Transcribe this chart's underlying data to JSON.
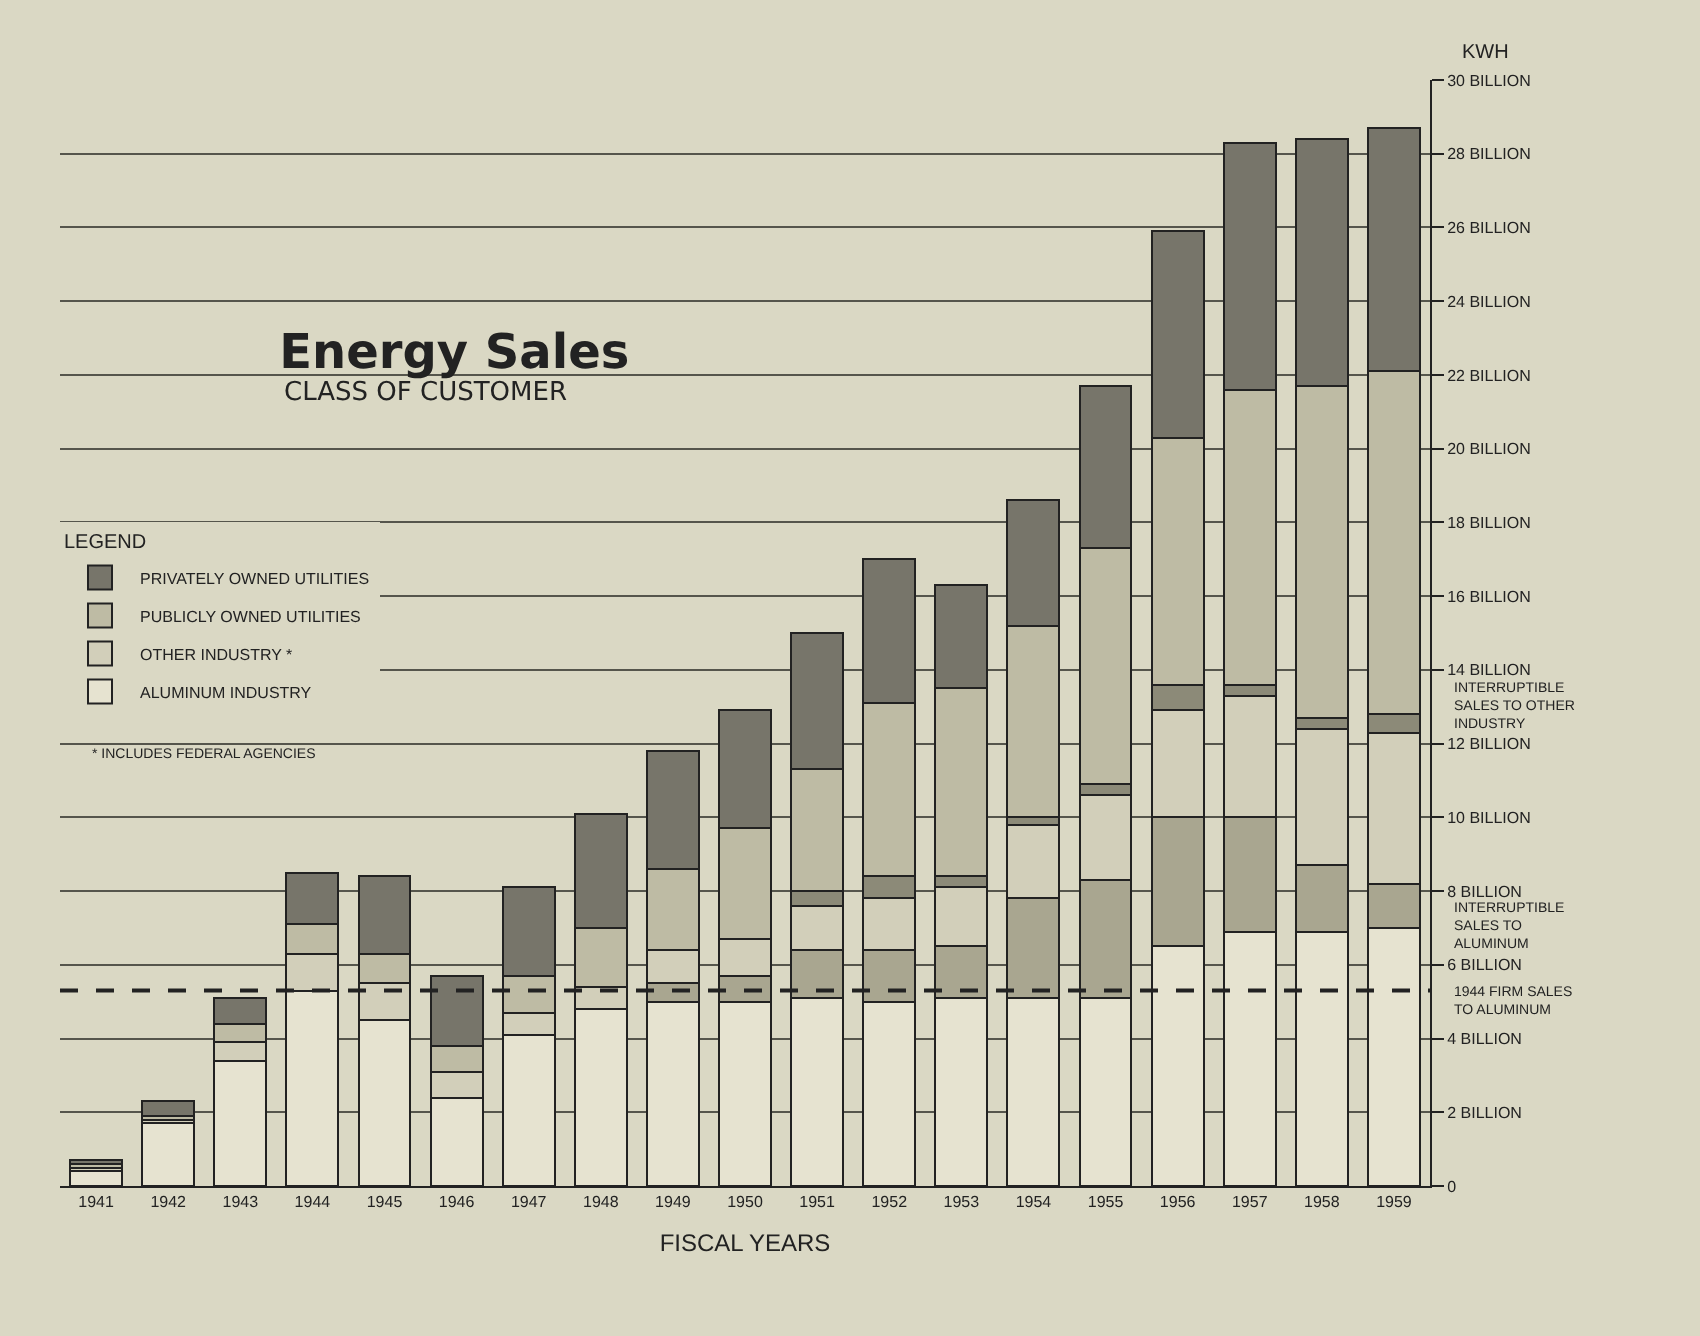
{
  "chart_data": {
    "type": "bar",
    "stacked": true,
    "title": "Energy Sales",
    "subtitle": "CLASS OF CUSTOMER",
    "xlabel": "FISCAL YEARS",
    "ylabel": "KWH",
    "legend_title": "LEGEND",
    "legend": "left",
    "categories": [
      "1941",
      "1942",
      "1943",
      "1944",
      "1945",
      "1946",
      "1947",
      "1948",
      "1949",
      "1950",
      "1951",
      "1952",
      "1953",
      "1954",
      "1955",
      "1956",
      "1957",
      "1958",
      "1959"
    ],
    "series": [
      {
        "name": "ALUMINUM INDUSTRY",
        "color": "#e6e3d0",
        "values": [
          0.4,
          1.7,
          3.4,
          5.3,
          4.5,
          2.4,
          4.1,
          4.8,
          5.0,
          5.0,
          5.1,
          5.0,
          5.1,
          5.1,
          5.1,
          6.5,
          6.9,
          6.9,
          7.0
        ]
      },
      {
        "color": "#a9a690",
        "values": [
          null,
          null,
          null,
          null,
          null,
          null,
          null,
          null,
          0.5,
          0.7,
          1.3,
          1.4,
          1.4,
          2.7,
          3.2,
          3.5,
          3.1,
          1.8,
          1.2
        ]
      },
      {
        "name": "OTHER INDUSTRY *",
        "color": "#d2cfba",
        "values": [
          0.1,
          0.1,
          0.5,
          1.0,
          1.0,
          0.7,
          0.6,
          0.6,
          0.9,
          1.0,
          1.2,
          1.4,
          1.6,
          2.0,
          2.3,
          2.9,
          3.3,
          3.7,
          4.1
        ]
      },
      {
        "color": "#8c8a78",
        "values": [
          null,
          null,
          null,
          null,
          null,
          null,
          null,
          null,
          null,
          null,
          0.4,
          0.6,
          0.3,
          0.2,
          0.3,
          0.7,
          0.3,
          0.3,
          0.5
        ]
      },
      {
        "name": "PUBLICLY OWNED UTILITIES",
        "color": "#bebba4",
        "values": [
          0.1,
          0.1,
          0.5,
          0.8,
          0.8,
          0.7,
          1.0,
          1.6,
          2.2,
          3.0,
          3.3,
          4.7,
          5.1,
          5.2,
          6.4,
          6.7,
          8.0,
          9.0,
          9.3
        ]
      },
      {
        "name": "PRIVATELY OWNED UTILITIES",
        "color": "#77756a",
        "values": [
          0.1,
          0.4,
          0.7,
          1.4,
          2.1,
          1.9,
          2.4,
          3.1,
          3.2,
          3.2,
          3.7,
          3.9,
          2.8,
          3.4,
          4.4,
          5.6,
          6.7,
          6.7,
          6.6
        ]
      }
    ],
    "ylim": [
      0,
      30
    ],
    "yticks": [
      0,
      {
        "value": 2,
        "label": "2 BILLION"
      },
      {
        "value": 4,
        "label": "4 BILLION"
      },
      {
        "value": 6,
        "label": "6 BILLION"
      },
      {
        "value": 8,
        "label": "8 BILLION"
      },
      {
        "value": 10,
        "label": "10 BILLION"
      },
      {
        "value": 12,
        "label": "12 BILLION"
      },
      {
        "value": 14,
        "label": "14 BILLION"
      },
      {
        "value": 16,
        "label": "16 BILLION"
      },
      {
        "value": 18,
        "label": "18 BILLION"
      },
      {
        "value": 20,
        "label": "20 BILLION"
      },
      {
        "value": 22,
        "label": "22 BILLION"
      },
      {
        "value": 24,
        "label": "24 BILLION"
      },
      {
        "value": 26,
        "label": "26 BILLION"
      },
      {
        "value": 28,
        "label": "28 BILLION"
      },
      {
        "value": 30,
        "label": "30 BILLION"
      }
    ],
    "grid": "y",
    "ref_lines": [
      {
        "axis": "y",
        "value": 5.3,
        "label": "1944 FIRM SALES TO ALUMINUM",
        "line_style": "dashed",
        "color": "#222222"
      }
    ],
    "annotations": [
      "INTERRUPTIBLE SALES TO OTHER INDUSTRY",
      "INTERRUPTIBLE SALES TO ALUMINUM",
      "* INCLUDES FEDERAL AGENCIES"
    ]
  }
}
